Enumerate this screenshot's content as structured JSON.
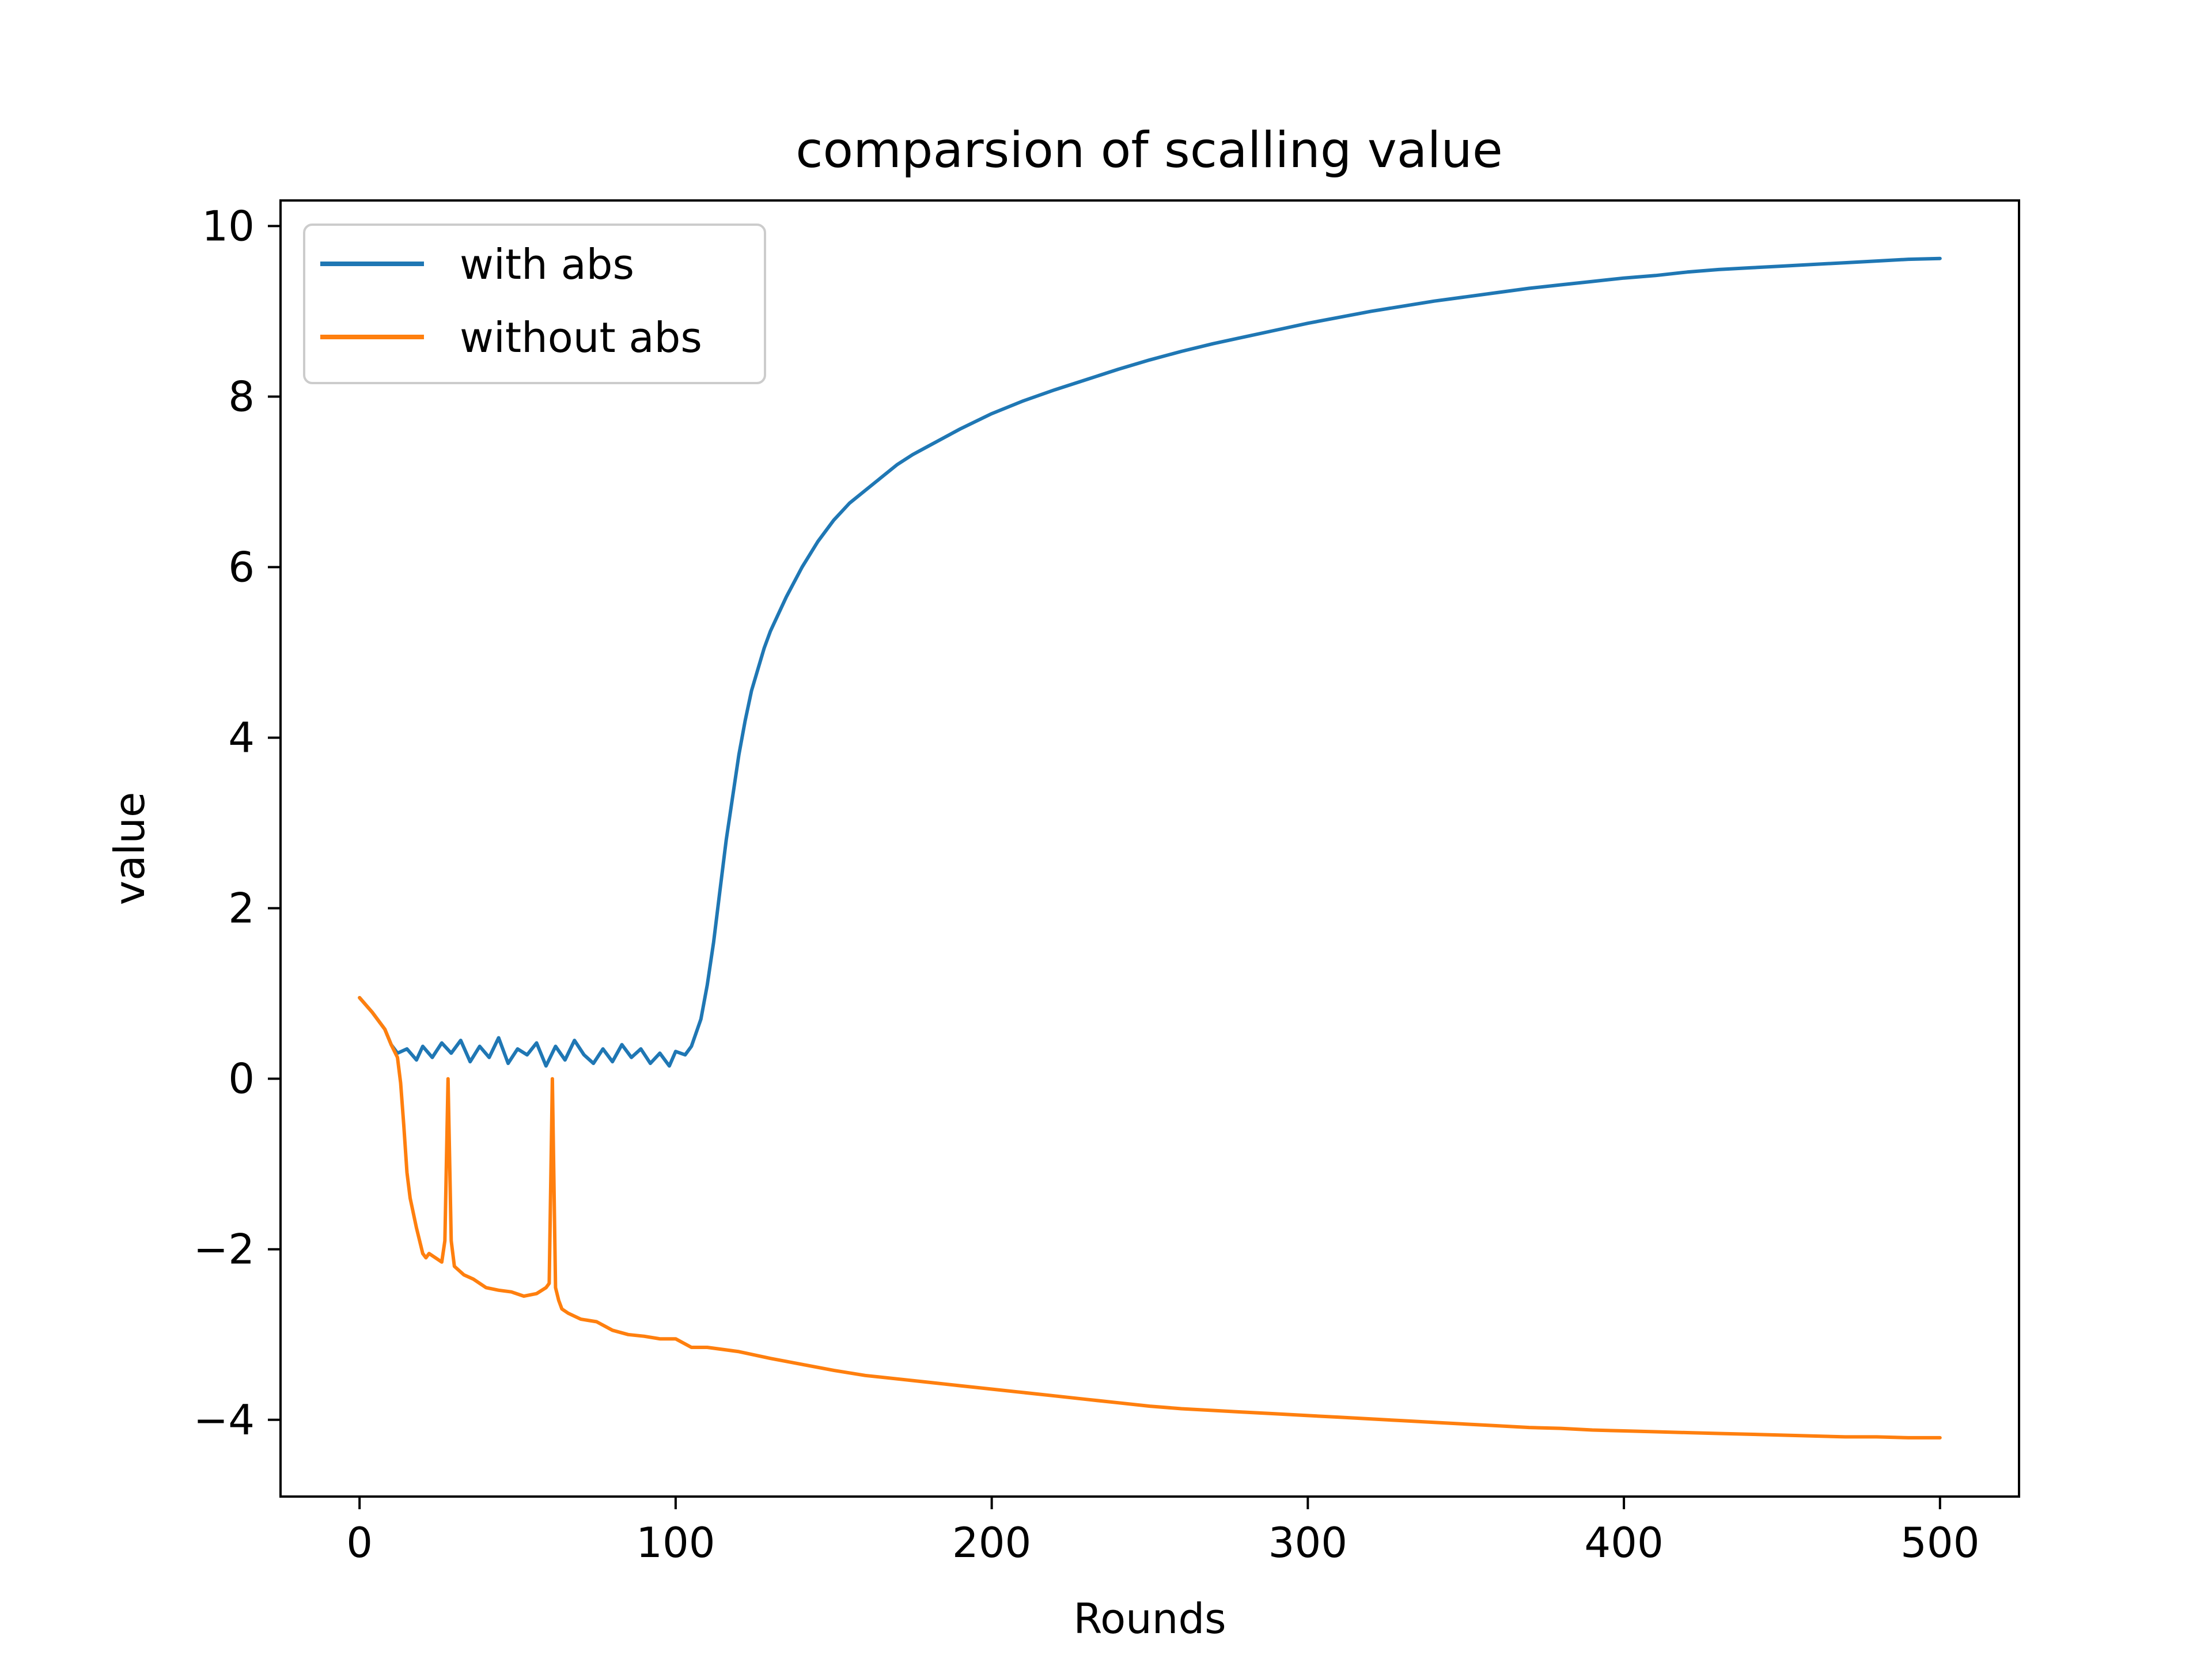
{
  "chart_data": {
    "type": "line",
    "title": "comparsion of scalling value",
    "xlabel": "Rounds",
    "ylabel": "value",
    "xlim": [
      -25,
      525
    ],
    "ylim": [
      -4.9,
      10.3
    ],
    "xticks": [
      0,
      100,
      200,
      300,
      400,
      500
    ],
    "yticks": [
      -4,
      -2,
      0,
      2,
      4,
      6,
      8,
      10
    ],
    "xtick_labels": [
      "0",
      "100",
      "200",
      "300",
      "400",
      "500"
    ],
    "ytick_labels": [
      "−4",
      "−2",
      "0",
      "2",
      "4",
      "6",
      "8",
      "10"
    ],
    "grid": false,
    "legend_position": "top-left",
    "series": [
      {
        "name": "with abs",
        "color": "#1f77b4",
        "x": [
          0,
          4,
          8,
          10,
          12,
          15,
          18,
          20,
          23,
          26,
          29,
          32,
          35,
          38,
          41,
          44,
          47,
          50,
          53,
          56,
          59,
          62,
          65,
          68,
          71,
          74,
          77,
          80,
          83,
          86,
          89,
          92,
          95,
          98,
          100,
          103,
          105,
          108,
          110,
          112,
          114,
          116,
          118,
          120,
          122,
          124,
          126,
          128,
          130,
          135,
          140,
          145,
          150,
          155,
          160,
          165,
          170,
          175,
          180,
          190,
          200,
          210,
          220,
          230,
          240,
          250,
          260,
          270,
          280,
          290,
          300,
          310,
          320,
          330,
          340,
          350,
          360,
          370,
          380,
          390,
          400,
          410,
          420,
          430,
          440,
          450,
          460,
          470,
          480,
          490,
          500
        ],
        "y": [
          0.95,
          0.78,
          0.58,
          0.4,
          0.3,
          0.35,
          0.22,
          0.38,
          0.25,
          0.42,
          0.3,
          0.45,
          0.2,
          0.38,
          0.25,
          0.48,
          0.18,
          0.35,
          0.28,
          0.42,
          0.15,
          0.38,
          0.22,
          0.45,
          0.28,
          0.18,
          0.35,
          0.2,
          0.4,
          0.25,
          0.35,
          0.18,
          0.3,
          0.15,
          0.32,
          0.28,
          0.38,
          0.7,
          1.1,
          1.6,
          2.2,
          2.8,
          3.3,
          3.8,
          4.2,
          4.55,
          4.8,
          5.05,
          5.25,
          5.65,
          6.0,
          6.3,
          6.55,
          6.75,
          6.9,
          7.05,
          7.2,
          7.32,
          7.42,
          7.62,
          7.8,
          7.95,
          8.08,
          8.2,
          8.32,
          8.43,
          8.53,
          8.62,
          8.7,
          8.78,
          8.86,
          8.93,
          9.0,
          9.06,
          9.12,
          9.17,
          9.22,
          9.27,
          9.31,
          9.35,
          9.39,
          9.42,
          9.46,
          9.49,
          9.51,
          9.53,
          9.55,
          9.57,
          9.59,
          9.61,
          9.62
        ]
      },
      {
        "name": "without abs",
        "color": "#ff7f0e",
        "x": [
          0,
          4,
          8,
          10,
          12,
          13,
          14,
          15,
          16,
          18,
          20,
          21,
          22,
          24,
          26,
          27,
          28,
          29,
          30,
          33,
          36,
          40,
          44,
          48,
          52,
          56,
          59,
          60,
          61,
          62,
          63,
          64,
          66,
          70,
          75,
          80,
          85,
          90,
          95,
          100,
          105,
          110,
          120,
          130,
          140,
          150,
          160,
          170,
          180,
          190,
          200,
          210,
          220,
          230,
          240,
          250,
          260,
          270,
          280,
          290,
          300,
          310,
          320,
          330,
          340,
          350,
          360,
          370,
          380,
          390,
          400,
          410,
          420,
          430,
          440,
          450,
          460,
          470,
          480,
          490,
          500
        ],
        "y": [
          0.95,
          0.78,
          0.58,
          0.4,
          0.25,
          -0.05,
          -0.55,
          -1.1,
          -1.4,
          -1.75,
          -2.05,
          -2.1,
          -2.05,
          -2.1,
          -2.15,
          -1.9,
          0.0,
          -1.9,
          -2.2,
          -2.3,
          -2.35,
          -2.45,
          -2.48,
          -2.5,
          -2.55,
          -2.52,
          -2.45,
          -2.4,
          0.0,
          -2.45,
          -2.6,
          -2.7,
          -2.75,
          -2.82,
          -2.85,
          -2.95,
          -3.0,
          -3.02,
          -3.05,
          -3.05,
          -3.15,
          -3.15,
          -3.2,
          -3.28,
          -3.35,
          -3.42,
          -3.48,
          -3.52,
          -3.56,
          -3.6,
          -3.64,
          -3.68,
          -3.72,
          -3.76,
          -3.8,
          -3.84,
          -3.87,
          -3.89,
          -3.91,
          -3.93,
          -3.95,
          -3.97,
          -3.99,
          -4.01,
          -4.03,
          -4.05,
          -4.07,
          -4.09,
          -4.1,
          -4.12,
          -4.13,
          -4.14,
          -4.15,
          -4.16,
          -4.17,
          -4.18,
          -4.19,
          -4.2,
          -4.2,
          -4.21,
          -4.21
        ]
      }
    ]
  }
}
